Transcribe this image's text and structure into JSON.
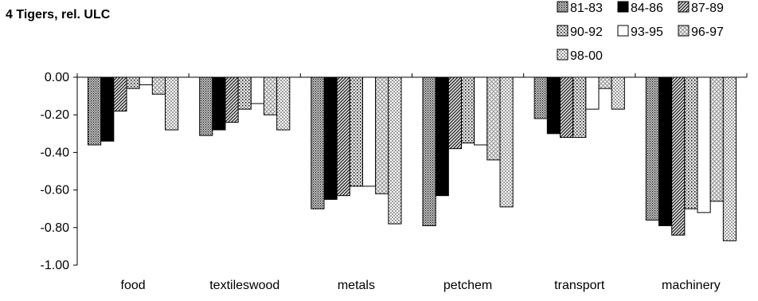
{
  "chart_data": {
    "type": "bar",
    "title": "4 Tigers, rel. ULC",
    "xlabel": "",
    "ylabel": "",
    "ylim": [
      -1.0,
      0.0
    ],
    "yticks": [
      "0.00",
      "-0.20",
      "-0.40",
      "-0.60",
      "-0.80",
      "-1.00"
    ],
    "ytick_values": [
      0.0,
      -0.2,
      -0.4,
      -0.6,
      -0.8,
      -1.0
    ],
    "categories": [
      "food",
      "textileswood",
      "metals",
      "petchem",
      "transport",
      "machinery"
    ],
    "series": [
      {
        "name": "81-83",
        "pattern": "dense-dots",
        "values": [
          -0.36,
          -0.31,
          -0.7,
          -0.79,
          -0.22,
          -0.76
        ]
      },
      {
        "name": "84-86",
        "pattern": "solid-black",
        "values": [
          -0.34,
          -0.28,
          -0.65,
          -0.63,
          -0.3,
          -0.79
        ]
      },
      {
        "name": "87-89",
        "pattern": "diagonal",
        "values": [
          -0.18,
          -0.24,
          -0.63,
          -0.38,
          -0.32,
          -0.84
        ]
      },
      {
        "name": "90-92",
        "pattern": "dots",
        "values": [
          -0.06,
          -0.17,
          -0.58,
          -0.35,
          -0.32,
          -0.7
        ]
      },
      {
        "name": "93-95",
        "pattern": "white",
        "values": [
          -0.04,
          -0.14,
          -0.58,
          -0.36,
          -0.17,
          -0.72
        ]
      },
      {
        "name": "96-97",
        "pattern": "crosshatch",
        "values": [
          -0.09,
          -0.2,
          -0.62,
          -0.44,
          -0.06,
          -0.66
        ]
      },
      {
        "name": "98-00",
        "pattern": "checker",
        "values": [
          -0.28,
          -0.28,
          -0.78,
          -0.69,
          -0.17,
          -0.87
        ]
      }
    ],
    "grid": false,
    "legend": "top-right"
  }
}
